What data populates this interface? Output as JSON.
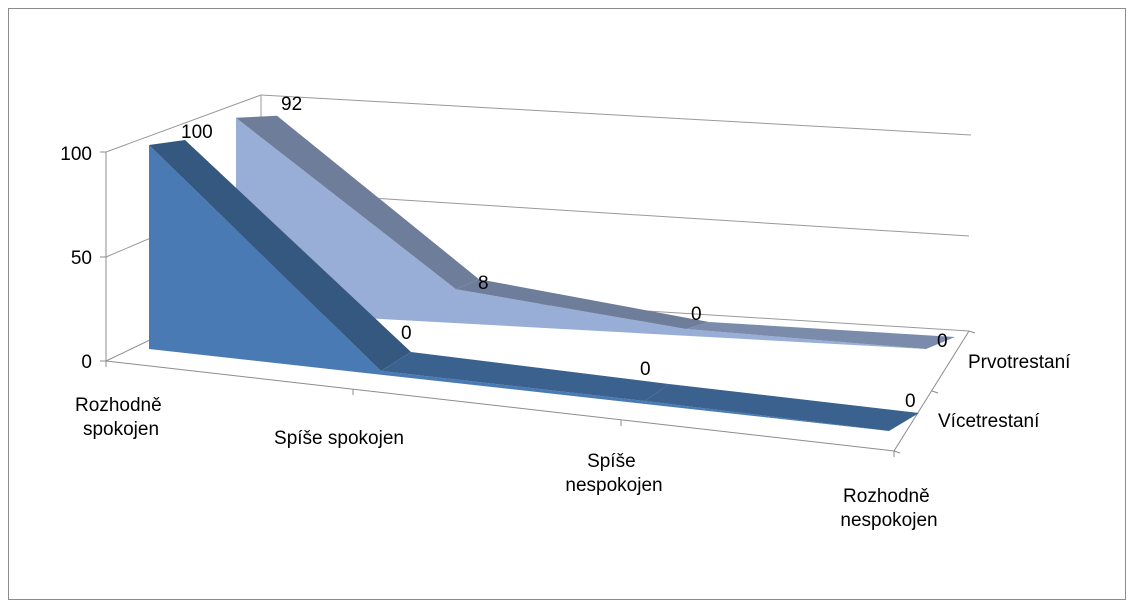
{
  "chart_data": {
    "type": "area",
    "style": "3d",
    "categories": [
      "Rozhodně spokojen",
      "Spíše spokojen",
      "Spíše nespokojen",
      "Rozhodně nespokojen"
    ],
    "series": [
      {
        "name": "Vícetrestaní",
        "values": [
          100,
          0,
          0,
          0
        ],
        "color": "#4a7ab3"
      },
      {
        "name": "Prvotrestaní",
        "values": [
          92,
          8,
          0,
          0
        ],
        "color": "#98aed6"
      }
    ],
    "y_ticks": [
      "0",
      "50",
      "100"
    ],
    "ylim": [
      0,
      100
    ],
    "grid": true,
    "legend": "series labels on depth axis (right)"
  }
}
